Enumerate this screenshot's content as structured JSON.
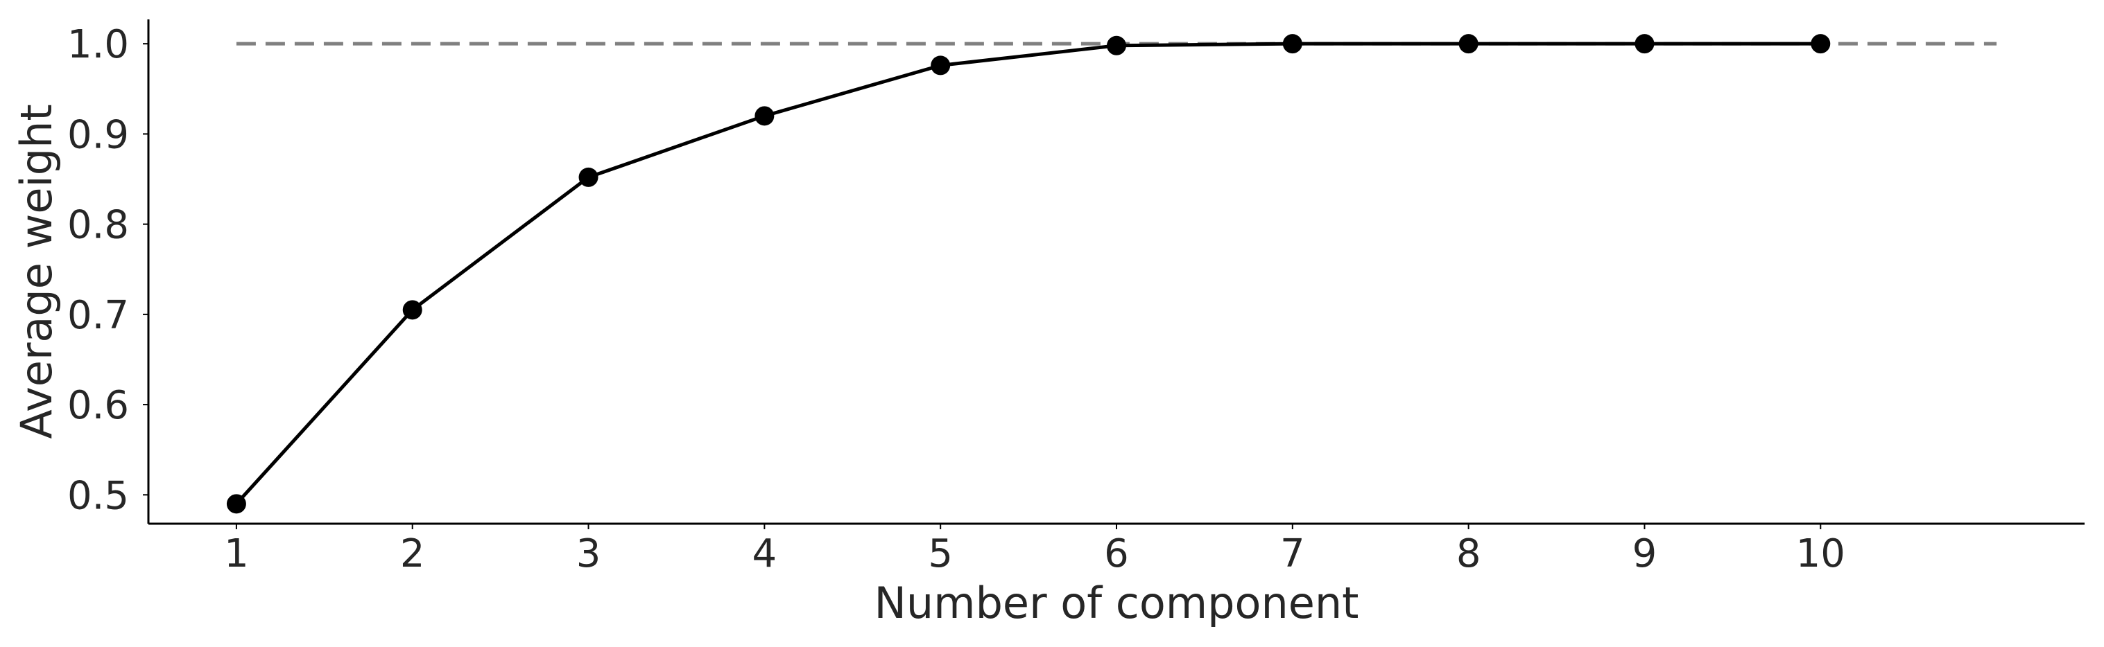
{
  "chart_data": {
    "type": "line",
    "xlabel": "Number of component",
    "ylabel": "Average weight",
    "x": [
      1,
      2,
      3,
      4,
      5,
      6,
      7,
      8,
      9,
      10
    ],
    "series": [
      {
        "values": [
          0.49,
          0.705,
          0.852,
          0.92,
          0.976,
          0.998,
          1.0,
          1.0,
          1.0,
          1.0
        ],
        "color": "#000000"
      }
    ],
    "reference_line": {
      "y": 1.0,
      "x_range": [
        1,
        11
      ],
      "style": "dashed",
      "color": "#808080"
    },
    "xticks": [
      1,
      2,
      3,
      4,
      5,
      6,
      7,
      8,
      9,
      10
    ],
    "xtick_labels": [
      "1",
      "2",
      "3",
      "4",
      "5",
      "6",
      "7",
      "8",
      "9",
      "10"
    ],
    "yticks": [
      0.5,
      0.6,
      0.7,
      0.8,
      0.9,
      1.0
    ],
    "ytick_labels": [
      "0.5",
      "0.6",
      "0.7",
      "0.8",
      "0.9",
      "1.0"
    ],
    "xlim": [
      0.5,
      11.5
    ],
    "ylim": [
      0.468,
      1.027
    ],
    "grid": false
  }
}
